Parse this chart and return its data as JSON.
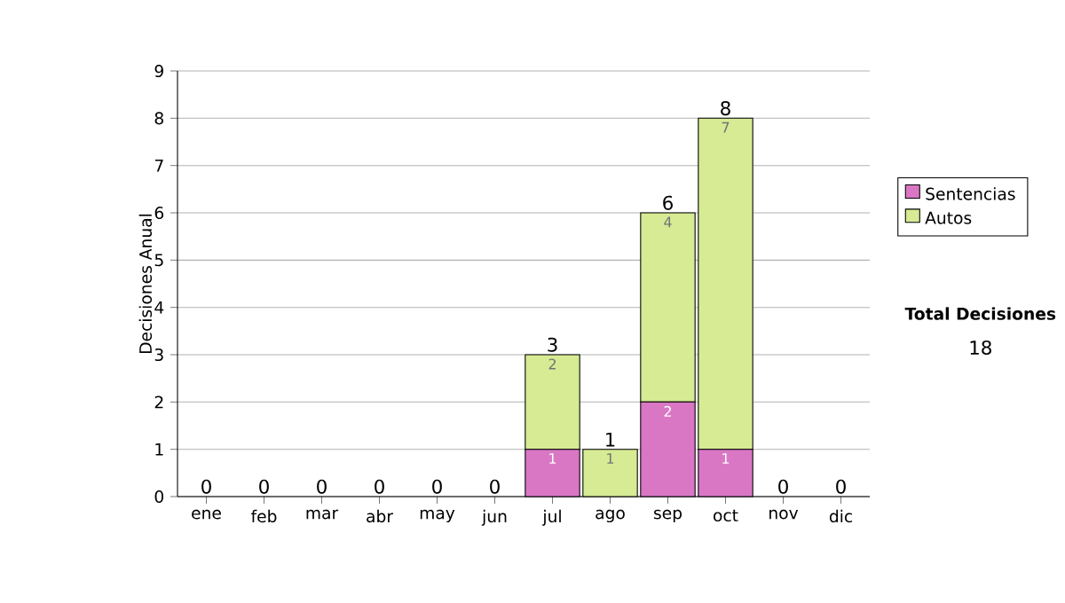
{
  "chart_data": {
    "type": "bar",
    "stacked": true,
    "categories": [
      "ene",
      "feb",
      "mar",
      "abr",
      "may",
      "jun",
      "jul",
      "ago",
      "sep",
      "oct",
      "nov",
      "dic"
    ],
    "ylabel": "Decisiones Anual",
    "series": [
      {
        "name": "Sentencias",
        "color": "#d977c4",
        "values": [
          0,
          0,
          0,
          0,
          0,
          0,
          1,
          0,
          2,
          1,
          0,
          0
        ],
        "value_labels": [
          null,
          null,
          null,
          null,
          null,
          null,
          "1",
          null,
          "2",
          "1",
          null,
          null
        ]
      },
      {
        "name": "Autos",
        "color": "#d6eb94",
        "values": [
          0,
          0,
          0,
          0,
          0,
          0,
          2,
          1,
          4,
          7,
          0,
          0
        ],
        "value_labels": [
          null,
          null,
          null,
          null,
          null,
          null,
          "2",
          "1",
          "4",
          "7",
          null,
          null
        ]
      }
    ],
    "totals": [
      "0",
      "0",
      "0",
      "0",
      "0",
      "0",
      "3",
      "1",
      "6",
      "8",
      "0",
      "0"
    ],
    "ylim": [
      0,
      9
    ],
    "yticks": [
      0,
      1,
      2,
      3,
      4,
      5,
      6,
      7,
      8,
      9
    ],
    "grid": "y",
    "legend": "right",
    "annotations": [
      "Total Decisiones",
      "18"
    ]
  }
}
